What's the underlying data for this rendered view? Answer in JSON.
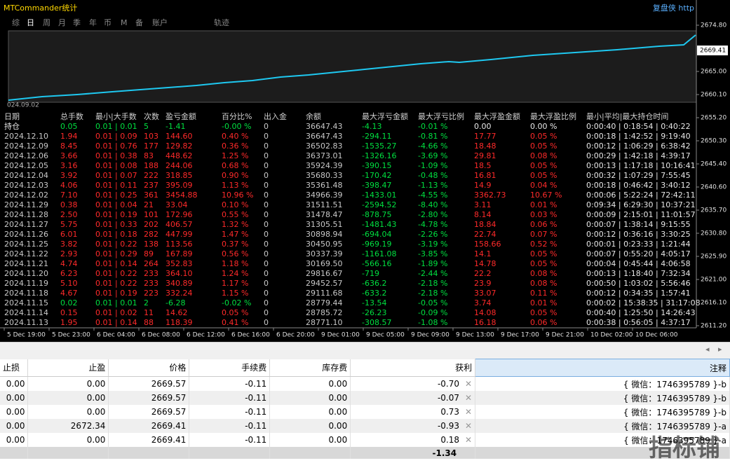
{
  "header": {
    "title": "MTCommander统计",
    "link": "复盘侠 http",
    "tabs": [
      "综",
      "日",
      "周",
      "月",
      "季",
      "年",
      "币",
      "M",
      "备",
      "账户",
      "轨迹"
    ],
    "start_label": "024.09.02"
  },
  "stats": {
    "header": [
      "日期",
      "总手数",
      "最小|大手数",
      "次数",
      "盈亏金额",
      "百分比%",
      "出入金",
      "余额",
      "最大浮亏金额",
      "最大浮亏比例",
      "最大浮盈金额",
      "最大浮盈比例",
      "最小|平均|最大持仓时间"
    ],
    "rows": [
      [
        "持仓",
        "0.05",
        "0.01 | 0.01",
        "5",
        "-1.41",
        "-0.00 %",
        "0",
        "36647.43",
        "-4.13",
        "-0.01 %",
        "0.00",
        "0.00 %",
        "0:00:40 | 0:18:54 | 0:40:22"
      ],
      [
        "2024.12.10",
        "1.94",
        "0.01 | 0.09",
        "103",
        "144.60",
        "0.40 %",
        "0",
        "36647.43",
        "-294.11",
        "-0.81 %",
        "17.77",
        "0.05 %",
        "0:00:18 | 1:42:52 | 9:19:40"
      ],
      [
        "2024.12.09",
        "8.45",
        "0.01 | 0.76",
        "177",
        "129.82",
        "0.36 %",
        "0",
        "36502.83",
        "-1535.27",
        "-4.66 %",
        "18.48",
        "0.05 %",
        "0:00:12 | 1:06:29 | 6:38:42"
      ],
      [
        "2024.12.06",
        "3.66",
        "0.01 | 0.38",
        "83",
        "448.62",
        "1.25 %",
        "0",
        "36373.01",
        "-1326.16",
        "-3.69 %",
        "29.81",
        "0.08 %",
        "0:00:29 | 1:42:18 | 4:39:17"
      ],
      [
        "2024.12.05",
        "3.16",
        "0.01 | 0.08",
        "188",
        "244.06",
        "0.68 %",
        "0",
        "35924.39",
        "-390.15",
        "-1.09 %",
        "18.5",
        "0.05 %",
        "0:00:13 | 1:17:18 | 10:16:41"
      ],
      [
        "2024.12.04",
        "3.92",
        "0.01 | 0.07",
        "222",
        "318.85",
        "0.90 %",
        "0",
        "35680.33",
        "-170.42",
        "-0.48 %",
        "16.81",
        "0.05 %",
        "0:00:32 | 1:07:29 | 7:55:45"
      ],
      [
        "2024.12.03",
        "4.06",
        "0.01 | 0.11",
        "237",
        "395.09",
        "1.13 %",
        "0",
        "35361.48",
        "-398.47",
        "-1.13 %",
        "14.9",
        "0.04 %",
        "0:00:18 | 0:46:42 | 3:40:12"
      ],
      [
        "2024.12.02",
        "7.10",
        "0.01 | 0.25",
        "361",
        "3454.88",
        "10.96 %",
        "0",
        "34966.39",
        "-1433.01",
        "-4.55 %",
        "3362.73",
        "10.67 %",
        "0:00:06 | 5:22:24 | 72:42:11"
      ],
      [
        "2024.11.29",
        "0.38",
        "0.01 | 0.04",
        "21",
        "33.04",
        "0.10 %",
        "0",
        "31511.51",
        "-2594.52",
        "-8.40 %",
        "3.11",
        "0.01 %",
        "0:09:34 | 6:29:30 | 10:37:21"
      ],
      [
        "2024.11.28",
        "2.50",
        "0.01 | 0.19",
        "101",
        "172.96",
        "0.55 %",
        "0",
        "31478.47",
        "-878.75",
        "-2.80 %",
        "8.14",
        "0.03 %",
        "0:00:09 | 2:15:01 | 11:01:57"
      ],
      [
        "2024.11.27",
        "5.75",
        "0.01 | 0.33",
        "202",
        "406.57",
        "1.32 %",
        "0",
        "31305.51",
        "-1481.43",
        "-4.78 %",
        "18.84",
        "0.06 %",
        "0:00:07 | 1:38:14 | 9:15:55"
      ],
      [
        "2024.11.26",
        "6.01",
        "0.01 | 0.18",
        "282",
        "447.99",
        "1.47 %",
        "0",
        "30898.94",
        "-694.04",
        "-2.26 %",
        "22.74",
        "0.07 %",
        "0:00:12 | 0:36:16 | 3:30:25"
      ],
      [
        "2024.11.25",
        "3.82",
        "0.01 | 0.22",
        "138",
        "113.56",
        "0.37 %",
        "0",
        "30450.95",
        "-969.19",
        "-3.19 %",
        "158.66",
        "0.52 %",
        "0:00:01 | 0:23:33 | 1:21:44"
      ],
      [
        "2024.11.22",
        "2.93",
        "0.01 | 0.29",
        "89",
        "167.89",
        "0.56 %",
        "0",
        "30337.39",
        "-1161.08",
        "-3.85 %",
        "14.1",
        "0.05 %",
        "0:00:07 | 0:55:20 | 4:05:17"
      ],
      [
        "2024.11.21",
        "4.74",
        "0.01 | 0.14",
        "264",
        "352.83",
        "1.18 %",
        "0",
        "30169.50",
        "-566.16",
        "-1.89 %",
        "14.78",
        "0.05 %",
        "0:00:04 | 0:45:44 | 4:06:58"
      ],
      [
        "2024.11.20",
        "6.23",
        "0.01 | 0.22",
        "233",
        "364.10",
        "1.24 %",
        "0",
        "29816.67",
        "-719",
        "-2.44 %",
        "22.2",
        "0.08 %",
        "0:00:13 | 1:18:40 | 7:32:34"
      ],
      [
        "2024.11.19",
        "5.10",
        "0.01 | 0.22",
        "233",
        "340.89",
        "1.17 %",
        "0",
        "29452.57",
        "-636.2",
        "-2.18 %",
        "23.9",
        "0.08 %",
        "0:00:50 | 1:03:02 | 5:56:46"
      ],
      [
        "2024.11.18",
        "4.67",
        "0.01 | 0.19",
        "223",
        "332.24",
        "1.15 %",
        "0",
        "29111.68",
        "-633.2",
        "-2.18 %",
        "33.07",
        "0.11 %",
        "0:00:12 | 0:34:35 | 1:57:41"
      ],
      [
        "2024.11.15",
        "0.02",
        "0.01 | 0.01",
        "2",
        "-6.28",
        "-0.02 %",
        "0",
        "28779.44",
        "-13.54",
        "-0.05 %",
        "3.74",
        "0.01 %",
        "0:00:02 | 15:38:35 | 31:17:08"
      ],
      [
        "2024.11.14",
        "0.15",
        "0.01 | 0.02",
        "11",
        "14.62",
        "0.05 %",
        "0",
        "28785.72",
        "-26.23",
        "-0.09 %",
        "14.08",
        "0.05 %",
        "0:00:40 | 1:25:50 | 14:26:43"
      ],
      [
        "2024.11.13",
        "1.95",
        "0.01 | 0.14",
        "88",
        "118.39",
        "0.41 %",
        "0",
        "28771.10",
        "-308.57",
        "-1.08 %",
        "16.18",
        "0.06 %",
        "0:00:38 | 0:56:05 | 4:37:17"
      ]
    ]
  },
  "price_axis": {
    "labels": [
      "2674.80",
      "2665.00",
      "2660.10",
      "2655.20",
      "2650.30",
      "2645.40",
      "2640.60",
      "2635.70",
      "2630.80",
      "2625.90",
      "2621.00",
      "2616.10",
      "2611.20"
    ],
    "current": "2669.41"
  },
  "time_axis": {
    "labels": [
      "5 Dec 19:00",
      "5 Dec 23:00",
      "6 Dec 04:00",
      "6 Dec 08:00",
      "6 Dec 12:00",
      "6 Dec 16:00",
      "6 Dec 20:00",
      "9 Dec 01:00",
      "9 Dec 05:00",
      "9 Dec 09:00",
      "9 Dec 13:00",
      "9 Dec 17:00",
      "9 Dec 21:00",
      "10 Dec 02:00",
      "10 Dec 06:00"
    ]
  },
  "orders": {
    "header": [
      "止损",
      "止盈",
      "价格",
      "手续费",
      "库存费",
      "获利",
      "注释"
    ],
    "rows": [
      [
        "0.00",
        "0.00",
        "2669.57",
        "-0.11",
        "0.00",
        "-0.70",
        "{ 微信：1746395789 }-b"
      ],
      [
        "0.00",
        "0.00",
        "2669.57",
        "-0.11",
        "0.00",
        "-0.07",
        "{ 微信：1746395789 }-b"
      ],
      [
        "0.00",
        "0.00",
        "2669.57",
        "-0.11",
        "0.00",
        "0.73",
        "{ 微信：1746395789 }-b"
      ],
      [
        "0.00",
        "2672.34",
        "2669.41",
        "-0.11",
        "0.00",
        "-0.93",
        "{ 微信：1746395789 }-a"
      ],
      [
        "0.00",
        "0.00",
        "2669.41",
        "-0.11",
        "0.00",
        "0.18",
        "{ 微信：1746395789 }-a"
      ]
    ],
    "total": "-1.34"
  },
  "watermark": "指标铺"
}
